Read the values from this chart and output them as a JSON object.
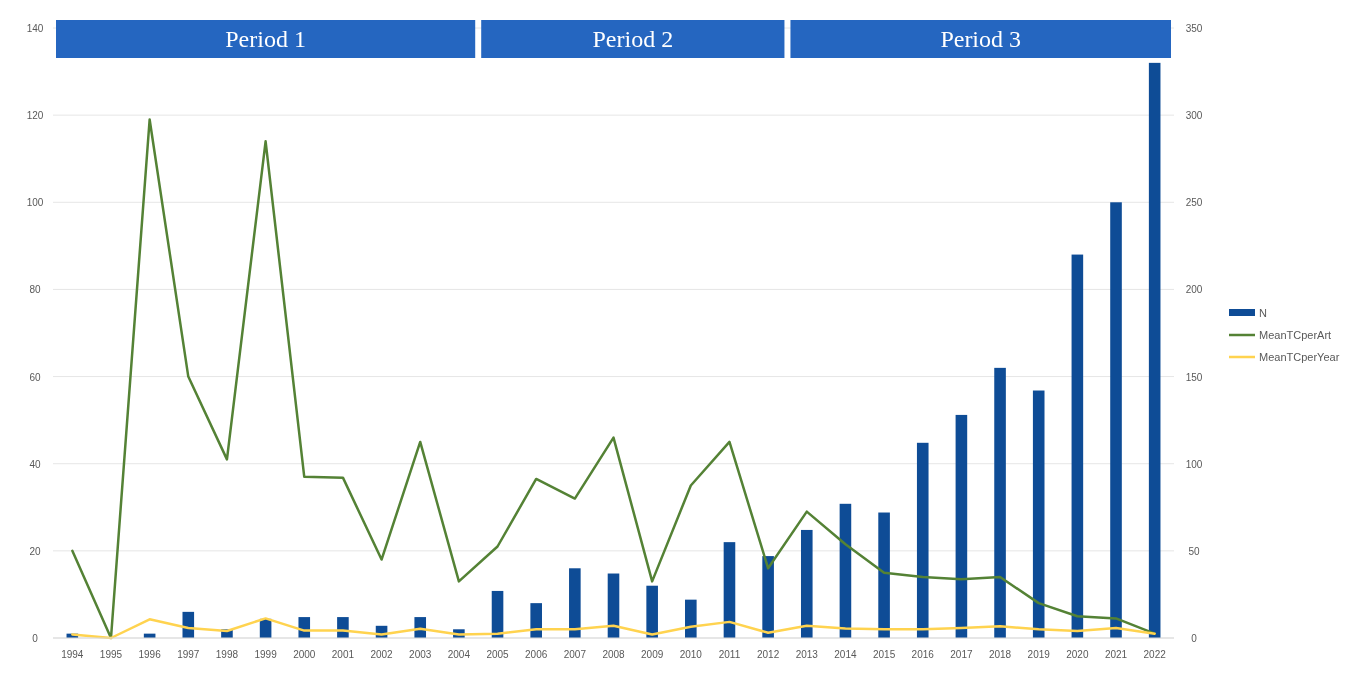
{
  "chart_data": {
    "type": "bar",
    "categories": [
      "1994",
      "1995",
      "1996",
      "1997",
      "1998",
      "1999",
      "2000",
      "2001",
      "2002",
      "2003",
      "2004",
      "2005",
      "2006",
      "2007",
      "2008",
      "2009",
      "2010",
      "2011",
      "2012",
      "2013",
      "2014",
      "2015",
      "2016",
      "2017",
      "2018",
      "2019",
      "2020",
      "2021",
      "2022"
    ],
    "series": [
      {
        "name": "N",
        "axis": "y2",
        "color": "#0e4c96",
        "values": [
          2.5,
          0,
          2.5,
          15,
          5,
          11,
          12,
          12,
          7,
          12,
          5,
          27,
          20,
          40,
          37,
          30,
          22,
          55,
          47,
          62,
          77,
          72,
          112,
          128,
          155,
          142,
          220,
          250,
          330
        ]
      },
      {
        "name": "MeanTCperArt",
        "type": "line",
        "color": "#548235",
        "values": [
          20,
          0,
          119,
          60,
          41,
          114,
          37,
          36.8,
          18,
          45,
          13,
          21,
          36.5,
          32,
          46,
          13,
          35,
          45,
          16,
          29,
          21.5,
          15,
          14,
          13.5,
          14,
          8,
          5,
          4.5,
          1
        ]
      },
      {
        "name": "MeanTCperYear",
        "type": "line",
        "color": "#ffd34f",
        "values": [
          0.8,
          0,
          4.3,
          2.3,
          1.6,
          4.5,
          1.7,
          1.7,
          0.8,
          2.1,
          0.8,
          1,
          2,
          2,
          2.8,
          0.8,
          2.6,
          3.7,
          1.2,
          2.8,
          2.2,
          2,
          2,
          2.3,
          2.7,
          2,
          1.6,
          2.3,
          1
        ]
      }
    ],
    "ylim": [
      0,
      140
    ],
    "yticks": [
      0,
      20,
      40,
      60,
      80,
      100,
      120,
      140
    ],
    "y2lim": [
      0,
      350
    ],
    "y2ticks": [
      0,
      50,
      100,
      150,
      200,
      250,
      300,
      350
    ],
    "bands": [
      {
        "axis": "x",
        "from": "1994",
        "to": "2004",
        "label": "Period 1",
        "color": "#2566c0"
      },
      {
        "axis": "x",
        "from": "2005",
        "to": "2012",
        "label": "Period 2",
        "color": "#2566c0"
      },
      {
        "axis": "x",
        "from": "2013",
        "to": "2022",
        "label": "Period 3",
        "color": "#2566c0"
      }
    ],
    "grid": "y",
    "legend": "right",
    "marker": "none",
    "line_style": "solid"
  }
}
